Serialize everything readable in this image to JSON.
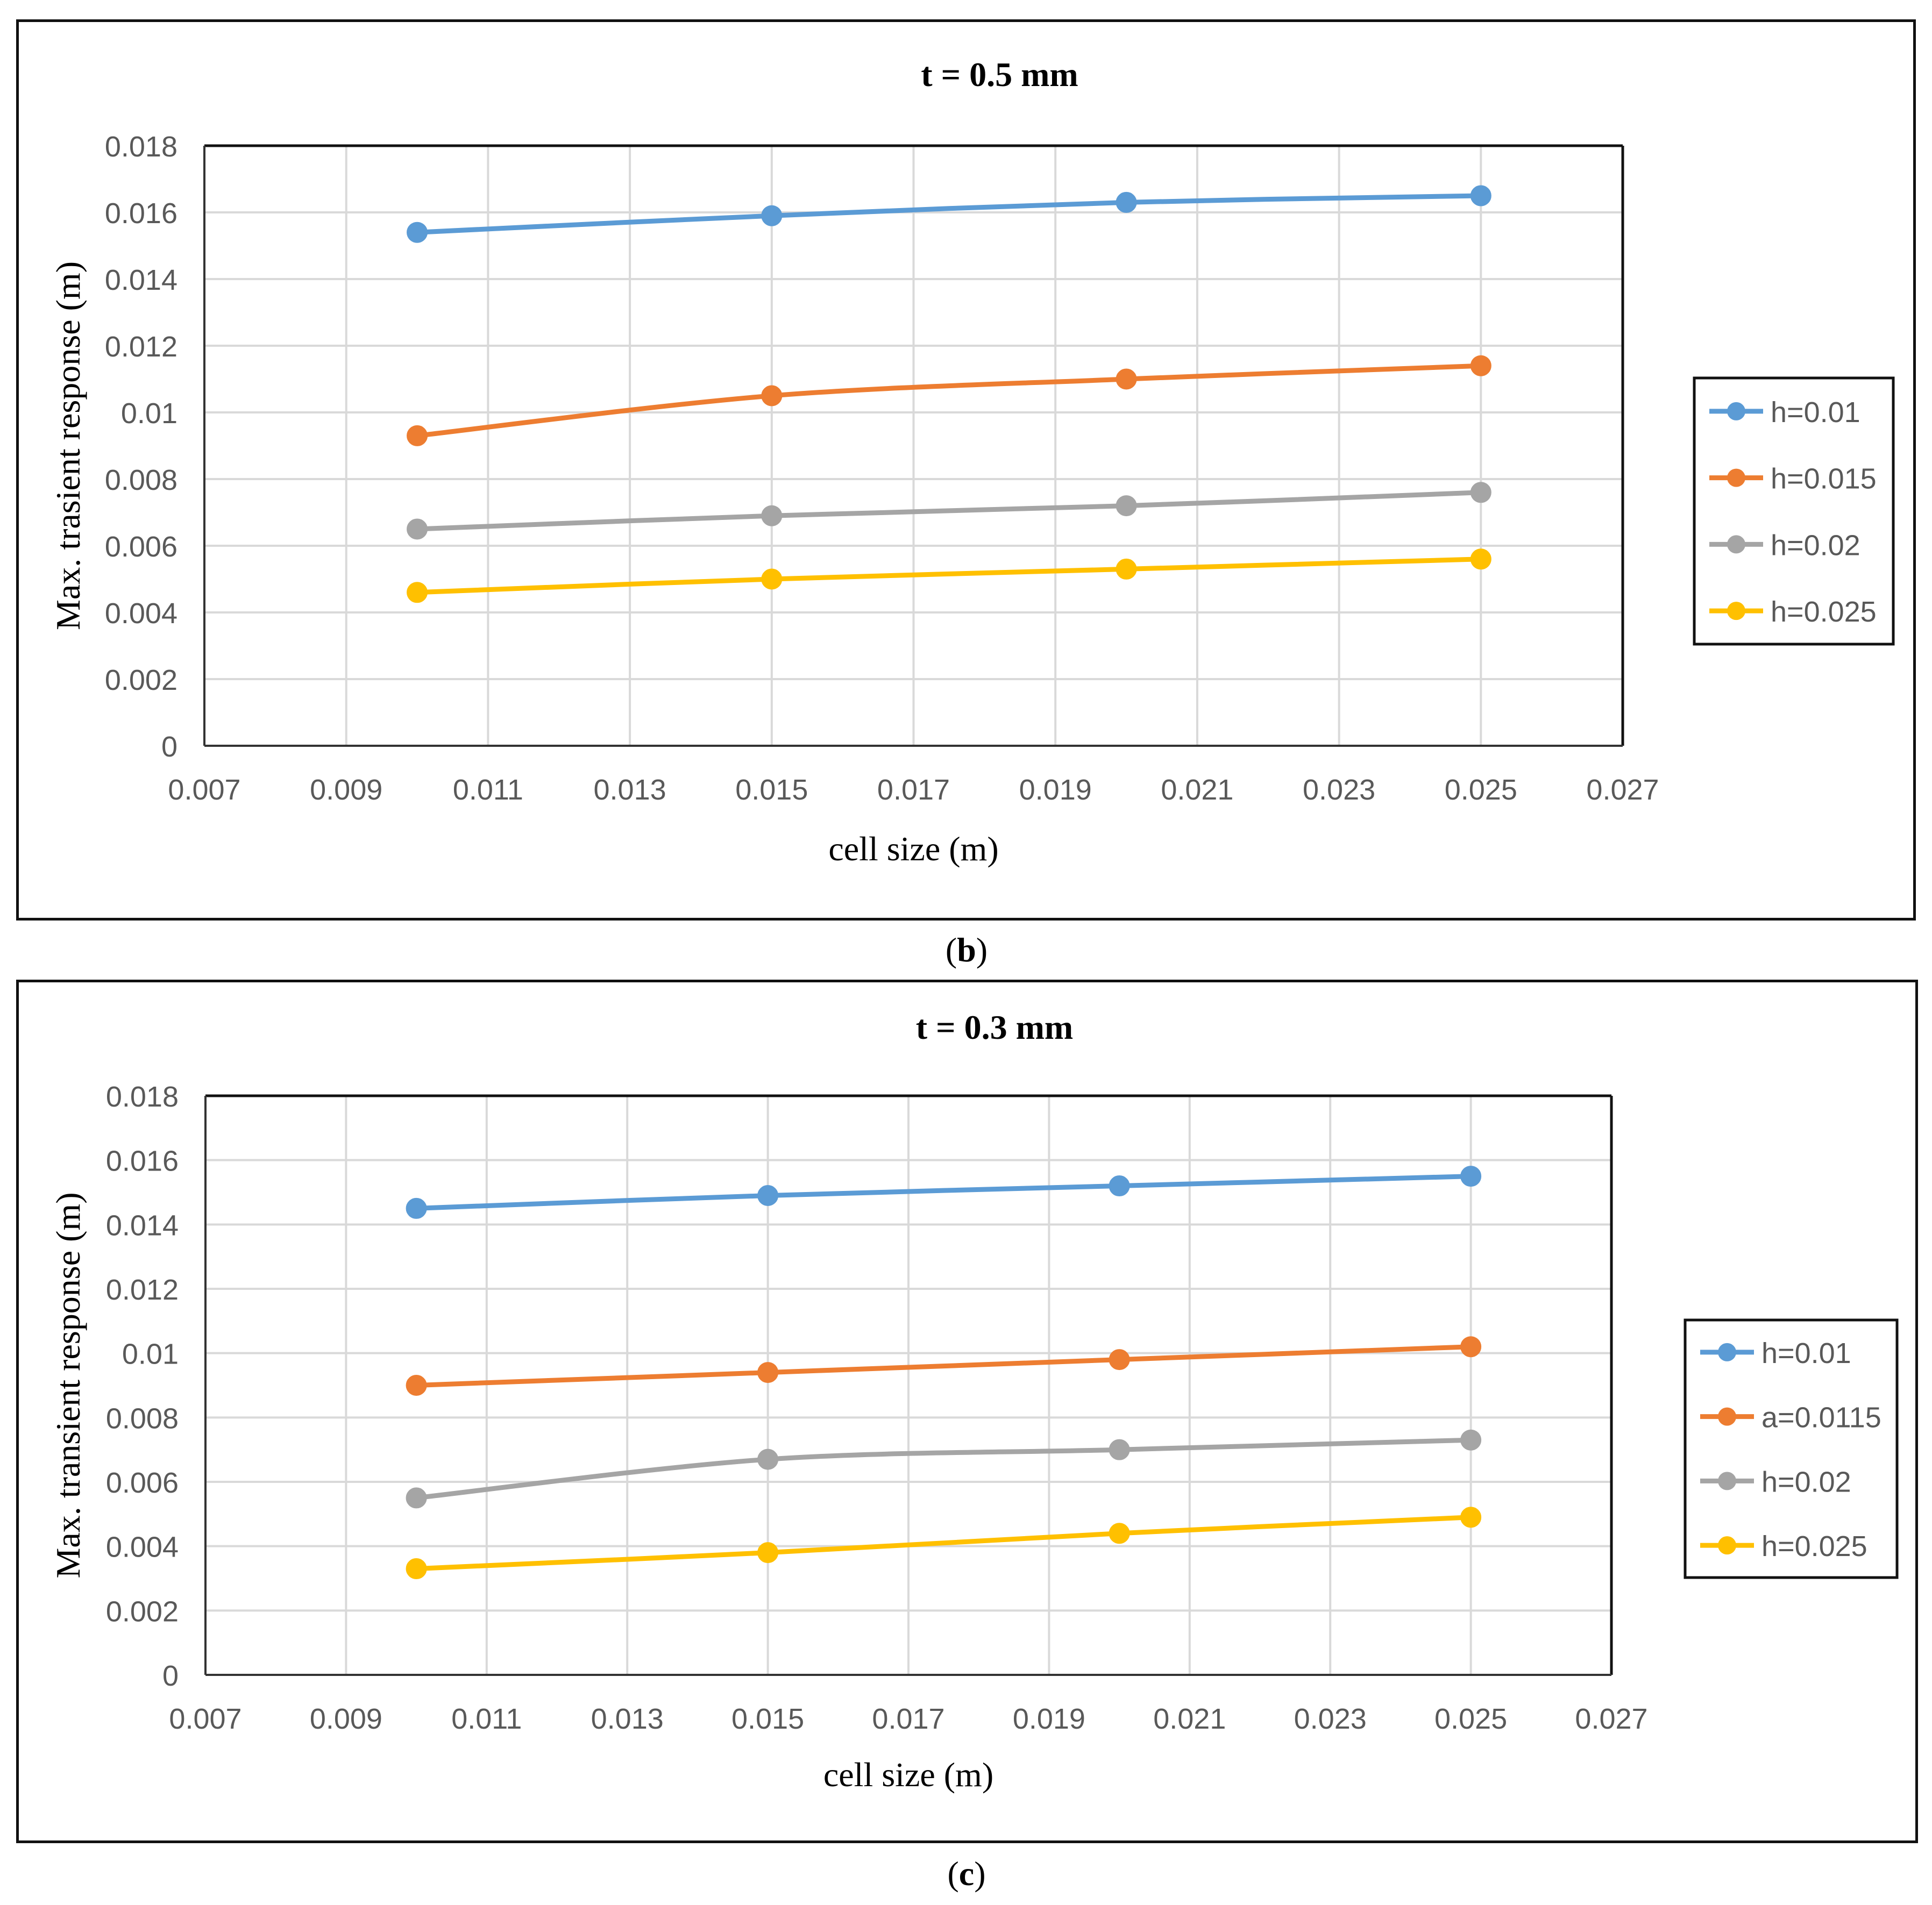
{
  "colors": {
    "blue": "#5B9BD5",
    "orange": "#ED7D31",
    "gray": "#A5A5A5",
    "yellow": "#FFC000"
  },
  "captions": {
    "b": {
      "open": "(",
      "letter": "b",
      "close": ")"
    },
    "c": {
      "open": "(",
      "letter": "c",
      "close": ")"
    }
  },
  "chart_data": [
    {
      "type": "line",
      "title": "t = 0.5 mm",
      "xlabel": "cell size (m)",
      "ylabel": "Max. trasient response (m)",
      "xlim": [
        0.007,
        0.027
      ],
      "ylim": [
        0,
        0.018
      ],
      "x_ticks": [
        "0.007",
        "0.009",
        "0.011",
        "0.013",
        "0.015",
        "0.017",
        "0.019",
        "0.021",
        "0.023",
        "0.025",
        "0.027"
      ],
      "y_ticks": [
        "0",
        "0.002",
        "0.004",
        "0.006",
        "0.008",
        "0.01",
        "0.012",
        "0.014",
        "0.016",
        "0.018"
      ],
      "grid": true,
      "legend_position": "right",
      "x": [
        0.01,
        0.015,
        0.02,
        0.025
      ],
      "series": [
        {
          "name": "h=0.01",
          "color_key": "blue",
          "values": [
            0.0154,
            0.0159,
            0.0163,
            0.0165
          ]
        },
        {
          "name": "h=0.015",
          "color_key": "orange",
          "values": [
            0.0093,
            0.0105,
            0.011,
            0.0114
          ]
        },
        {
          "name": "h=0.02",
          "color_key": "gray",
          "values": [
            0.0065,
            0.0069,
            0.0072,
            0.0076
          ]
        },
        {
          "name": "h=0.025",
          "color_key": "yellow",
          "values": [
            0.0046,
            0.005,
            0.0053,
            0.0056
          ]
        }
      ]
    },
    {
      "type": "line",
      "title": "t = 0.3 mm",
      "xlabel": "cell size (m)",
      "ylabel": "Max. transient response (m)",
      "xlim": [
        0.007,
        0.027
      ],
      "ylim": [
        0,
        0.018
      ],
      "x_ticks": [
        "0.007",
        "0.009",
        "0.011",
        "0.013",
        "0.015",
        "0.017",
        "0.019",
        "0.021",
        "0.023",
        "0.025",
        "0.027"
      ],
      "y_ticks": [
        "0",
        "0.002",
        "0.004",
        "0.006",
        "0.008",
        "0.01",
        "0.012",
        "0.014",
        "0.016",
        "0.018"
      ],
      "grid": true,
      "legend_position": "right",
      "x": [
        0.01,
        0.015,
        0.02,
        0.025
      ],
      "series": [
        {
          "name": "h=0.01",
          "color_key": "blue",
          "values": [
            0.0145,
            0.0149,
            0.0152,
            0.0155
          ]
        },
        {
          "name": "a=0.0115",
          "color_key": "orange",
          "values": [
            0.009,
            0.0094,
            0.0098,
            0.0102
          ]
        },
        {
          "name": "h=0.02",
          "color_key": "gray",
          "values": [
            0.0055,
            0.0067,
            0.007,
            0.0073
          ]
        },
        {
          "name": "h=0.025",
          "color_key": "yellow",
          "values": [
            0.0033,
            0.0038,
            0.0044,
            0.0049
          ]
        }
      ]
    }
  ]
}
